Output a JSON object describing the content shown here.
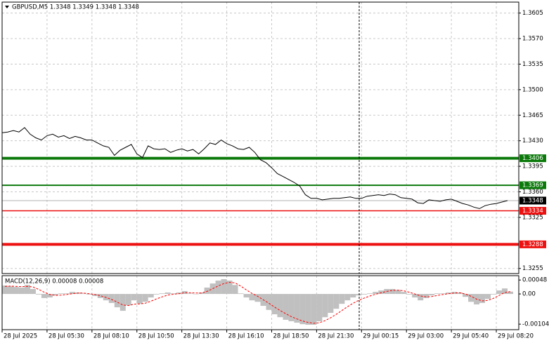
{
  "chart_data": [
    {
      "type": "line",
      "title": "GBPUSD,M5  1.3348 1.3349 1.3348 1.3348",
      "x": [
        0,
        4,
        8,
        12,
        16,
        20,
        24,
        28,
        32,
        36,
        40,
        44,
        48,
        52,
        56,
        60,
        64,
        68,
        72,
        76,
        80,
        84,
        88,
        92,
        96,
        100,
        104,
        108,
        112,
        116,
        120,
        124,
        128,
        132,
        136,
        140,
        144,
        148,
        152,
        156,
        160,
        164,
        168,
        172,
        176,
        180,
        184,
        188,
        192,
        196,
        200,
        204,
        208,
        212,
        216,
        220,
        224,
        228,
        232,
        236,
        240,
        244,
        248,
        252,
        256,
        260,
        264,
        268,
        272,
        276,
        280,
        284,
        288,
        292,
        296,
        300,
        304,
        308,
        312,
        316,
        320,
        324,
        328,
        332,
        336,
        340,
        344,
        348,
        352,
        356,
        360
      ],
      "values": [
        1.3441,
        1.3442,
        1.3444,
        1.3442,
        1.3448,
        1.3439,
        1.3434,
        1.3431,
        1.3437,
        1.3439,
        1.3435,
        1.3437,
        1.3433,
        1.3436,
        1.3434,
        1.3431,
        1.3431,
        1.3427,
        1.3423,
        1.3421,
        1.341,
        1.3417,
        1.3421,
        1.3425,
        1.3412,
        1.3407,
        1.3423,
        1.3419,
        1.3418,
        1.3419,
        1.3414,
        1.3417,
        1.3419,
        1.3416,
        1.3418,
        1.3412,
        1.3419,
        1.3427,
        1.3425,
        1.3431,
        1.3426,
        1.3423,
        1.3419,
        1.3418,
        1.3421,
        1.3414,
        1.3404,
        1.34,
        1.3393,
        1.3385,
        1.3381,
        1.3377,
        1.3373,
        1.3368,
        1.3356,
        1.3351,
        1.3351,
        1.3349,
        1.335,
        1.3351,
        1.3351,
        1.3352,
        1.3353,
        1.3351,
        1.3351,
        1.3354,
        1.3355,
        1.3356,
        1.3355,
        1.3357,
        1.3356,
        1.3352,
        1.3351,
        1.335,
        1.3345,
        1.3344,
        1.3349,
        1.3348,
        1.3347,
        1.3349,
        1.335,
        1.3347,
        1.3344,
        1.3342,
        1.3339,
        1.3337,
        1.3341,
        1.3343,
        1.3344,
        1.3346,
        1.3348
      ],
      "color": "#000000",
      "xlim": [
        0,
        368
      ],
      "ylim": [
        1.3248,
        1.362
      ],
      "yticks": [
        1.3605,
        {
          "value": 1.357,
          "label": "1.3570"
        },
        1.3535,
        {
          "value": 1.35,
          "label": "1.3500"
        },
        1.3465,
        {
          "value": 1.343,
          "label": "1.3430"
        },
        1.3395,
        {
          "value": 1.336,
          "label": "1.3360"
        },
        1.3325,
        1.3255
      ],
      "xticks": [
        {
          "value": 0,
          "label": "28 Jul 2025"
        },
        {
          "value": 32,
          "label": "28 Jul 05:30"
        },
        {
          "value": 64,
          "label": "28 Jul 08:10"
        },
        {
          "value": 96,
          "label": "28 Jul 10:50"
        },
        {
          "value": 128,
          "label": "28 Jul 13:30"
        },
        {
          "value": 160,
          "label": "28 Jul 16:10"
        },
        {
          "value": 192,
          "label": "28 Jul 18:50"
        },
        {
          "value": 224,
          "label": "28 Jul 21:30"
        },
        {
          "value": 256,
          "label": "29 Jul 00:15"
        },
        {
          "value": 288,
          "label": "29 Jul 03:00"
        },
        {
          "value": 320,
          "label": "29 Jul 05:40"
        },
        {
          "value": 352,
          "label": "29 Jul 08:20"
        }
      ],
      "grid": true,
      "levels": [
        {
          "value": 1.3406,
          "color": "#0b7a0b"
        },
        {
          "value": 1.3369,
          "color": "#0b7a0b"
        },
        {
          "value": 1.3334,
          "color": "#ee1111"
        },
        {
          "value": 1.3288,
          "color": "#ee1111"
        }
      ],
      "last": {
        "value": 1.3348,
        "color": "#000000"
      }
    },
    {
      "type": "macd",
      "title": "MACD(12,26,9) 0.00008 0.00008",
      "x": [
        0,
        4,
        8,
        12,
        16,
        20,
        24,
        28,
        32,
        36,
        40,
        44,
        48,
        52,
        56,
        60,
        64,
        68,
        72,
        76,
        80,
        84,
        88,
        92,
        96,
        100,
        104,
        108,
        112,
        116,
        120,
        124,
        128,
        132,
        136,
        140,
        144,
        148,
        152,
        156,
        160,
        164,
        168,
        172,
        176,
        180,
        184,
        188,
        192,
        196,
        200,
        204,
        208,
        212,
        216,
        220,
        224,
        228,
        232,
        236,
        240,
        244,
        248,
        252,
        256,
        260,
        264,
        268,
        272,
        276,
        280,
        284,
        288,
        292,
        296,
        300,
        304,
        308,
        312,
        316,
        320,
        324,
        328,
        332,
        336,
        340,
        344,
        348,
        352,
        356,
        360
      ],
      "histogram": {
        "color": "#c0c0c0",
        "values": [
          0.00029,
          0.00027,
          0.00024,
          0.00022,
          0.00031,
          0.00017,
          -2e-05,
          -0.00014,
          -0.00012,
          -5e-05,
          2e-05,
          2e-05,
          7e-05,
          5e-05,
          2e-05,
          -2e-05,
          -7e-05,
          -0.00014,
          -0.00022,
          -0.00031,
          -0.00046,
          -0.00058,
          -0.00039,
          -0.00022,
          -0.00034,
          -0.00027,
          -0.00012,
          -2e-05,
          2e-05,
          5e-05,
          2e-05,
          5e-05,
          0.0001,
          2e-05,
          0,
          5e-05,
          0.00022,
          0.00036,
          0.00046,
          0.00051,
          0.00046,
          0.00031,
          2e-05,
          -0.00012,
          -0.00022,
          -0.00027,
          -0.00041,
          -0.00055,
          -0.0007,
          -0.0008,
          -0.00089,
          -0.00094,
          -0.00099,
          -0.00104,
          -0.00106,
          -0.00106,
          -0.00094,
          -0.0008,
          -0.00065,
          -0.00051,
          -0.00034,
          -0.00022,
          -0.00012,
          -5e-05,
          -2e-05,
          2e-05,
          7e-05,
          0.00012,
          0.00017,
          0.00017,
          0.00014,
          7e-05,
          -2e-05,
          -0.00012,
          -0.00022,
          -0.00014,
          -5e-05,
          2e-05,
          2e-05,
          5e-05,
          7e-05,
          5e-05,
          -0.0001,
          -0.00027,
          -0.00036,
          -0.00031,
          -0.00017,
          -2e-05,
          0.00012,
          0.00019,
          8e-05
        ]
      },
      "signal": {
        "color": "#ff0000",
        "values": [
          0.00026,
          0.00027,
          0.00026,
          0.00025,
          0.00026,
          0.00024,
          0.00016,
          6e-05,
          -2e-05,
          -5e-05,
          -4e-05,
          -2e-05,
          1e-05,
          3e-05,
          3e-05,
          1e-05,
          -2e-05,
          -6e-05,
          -0.00012,
          -0.00019,
          -0.00028,
          -0.00038,
          -0.0004,
          -0.00035,
          -0.00034,
          -0.00032,
          -0.00025,
          -0.00017,
          -0.0001,
          -4e-05,
          -1e-05,
          1e-05,
          4e-05,
          4e-05,
          3e-05,
          3e-05,
          9e-05,
          0.00018,
          0.00028,
          0.00036,
          0.0004,
          0.00038,
          0.00027,
          0.00014,
          2e-05,
          -8e-05,
          -0.0002,
          -0.00032,
          -0.00045,
          -0.00057,
          -0.00068,
          -0.00078,
          -0.00086,
          -0.00093,
          -0.00098,
          -0.00101,
          -0.00099,
          -0.00092,
          -0.00082,
          -0.0007,
          -0.00057,
          -0.00044,
          -0.00032,
          -0.00022,
          -0.00014,
          -7e-05,
          -1e-05,
          4e-05,
          9e-05,
          0.00012,
          0.00013,
          0.00011,
          6e-05,
          0,
          -7e-05,
          -0.0001,
          -9e-05,
          -5e-05,
          -2e-05,
          1e-05,
          3e-05,
          4e-05,
          0,
          -8e-05,
          -0.00018,
          -0.00024,
          -0.00022,
          -0.00015,
          -5e-05,
          5e-05,
          8e-05
        ]
      },
      "ylim": [
        -0.00123,
        0.00063
      ],
      "yticks": [
        0.00048,
        {
          "value": 0,
          "label": "0.00"
        },
        -0.00104
      ]
    }
  ]
}
